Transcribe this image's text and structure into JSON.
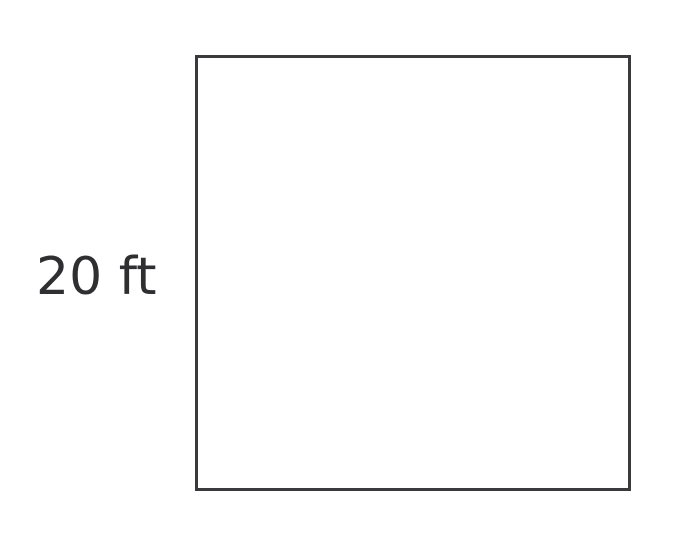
{
  "diagram": {
    "shape": "square",
    "side_label": "20 ft",
    "colors": {
      "stroke": "#3a3a3c",
      "text": "#2f2f31",
      "background": "#ffffff"
    }
  }
}
